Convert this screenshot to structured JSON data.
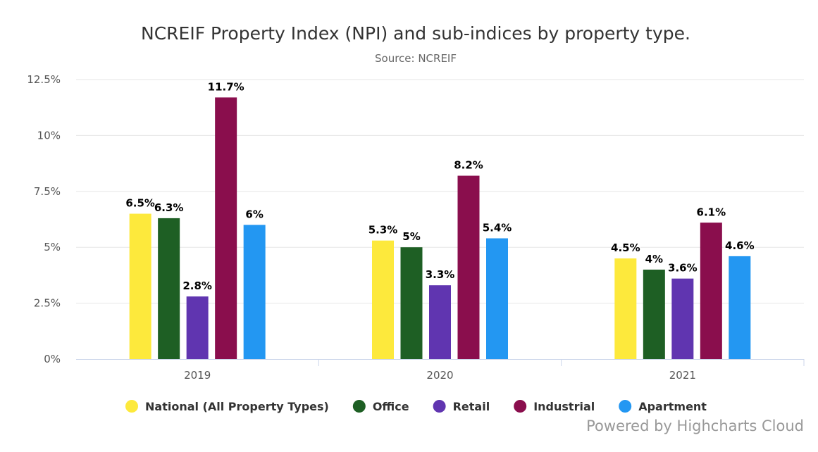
{
  "chart_data": {
    "type": "bar",
    "title": "NCREIF Property Index (NPI) and sub-indices by property type.",
    "subtitle": "Source: NCREIF",
    "categories": [
      "2019",
      "2020",
      "2021"
    ],
    "ylim": [
      0,
      12.5
    ],
    "yticks": [
      0,
      2.5,
      5,
      7.5,
      10,
      12.5
    ],
    "ytick_labels": [
      "0%",
      "2.5%",
      "5%",
      "7.5%",
      "10%",
      "12.5%"
    ],
    "grid": true,
    "legend_position": "bottom-center",
    "series": [
      {
        "name": "National (All Property Types)",
        "color": "#FDE93C",
        "values": [
          6.5,
          5.3,
          4.5
        ],
        "labels": [
          "6.5%",
          "5.3%",
          "4.5%"
        ]
      },
      {
        "name": "Office",
        "color": "#1E5F24",
        "values": [
          6.3,
          5.0,
          4.0
        ],
        "labels": [
          "6.3%",
          "5%",
          "4%"
        ]
      },
      {
        "name": "Retail",
        "color": "#6035B0",
        "values": [
          2.8,
          3.3,
          3.6
        ],
        "labels": [
          "2.8%",
          "3.3%",
          "3.6%"
        ]
      },
      {
        "name": "Industrial",
        "color": "#8A0E4D",
        "values": [
          11.7,
          8.2,
          6.1
        ],
        "labels": [
          "11.7%",
          "8.2%",
          "6.1%"
        ]
      },
      {
        "name": "Apartment",
        "color": "#2397F2",
        "values": [
          6.0,
          5.4,
          4.6
        ],
        "labels": [
          "6%",
          "5.4%",
          "4.6%"
        ]
      }
    ]
  },
  "credit": "Powered by Highcharts Cloud"
}
